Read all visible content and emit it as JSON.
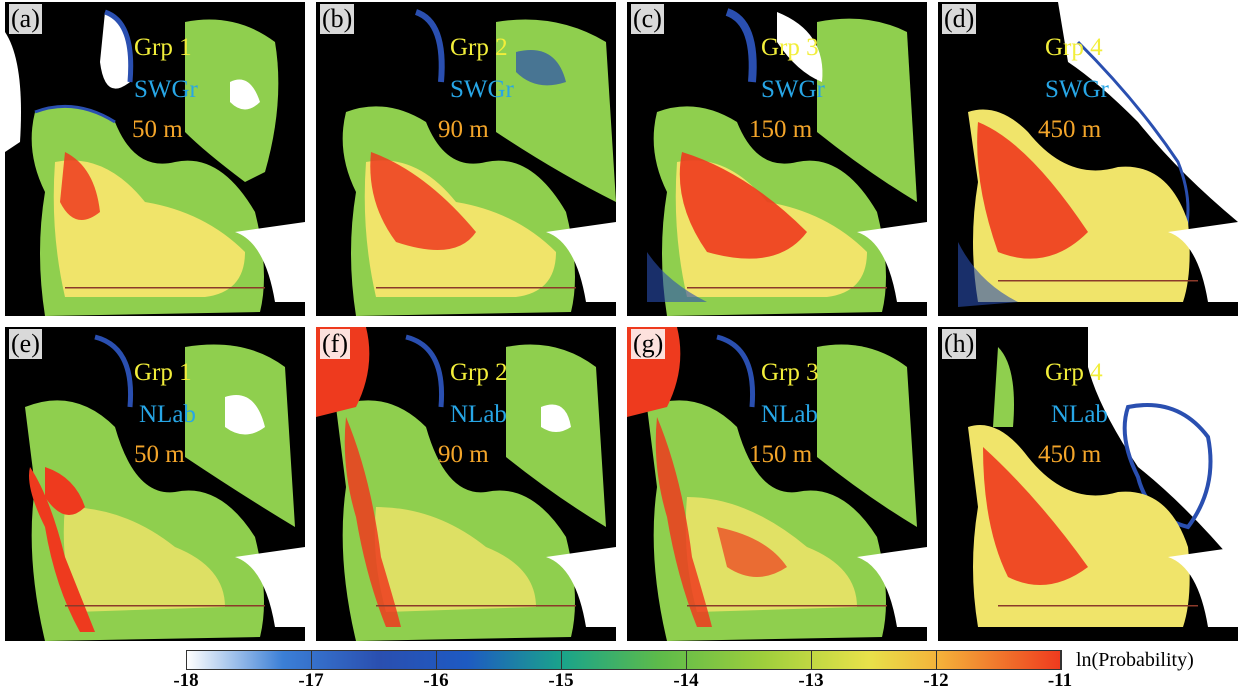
{
  "panels": [
    {
      "label": "(a)",
      "group": "Grp 1",
      "source": "SWGr",
      "depth": "50 m"
    },
    {
      "label": "(b)",
      "group": "Grp 2",
      "source": "SWGr",
      "depth": "90 m"
    },
    {
      "label": "(c)",
      "group": "Grp 3",
      "source": "SWGr",
      "depth": "150 m"
    },
    {
      "label": "(d)",
      "group": "Grp 4",
      "source": "SWGr",
      "depth": "450 m"
    },
    {
      "label": "(e)",
      "group": "Grp 1",
      "source": "NLab",
      "depth": "50 m"
    },
    {
      "label": "(f)",
      "group": "Grp 2",
      "source": "NLab",
      "depth": "90 m"
    },
    {
      "label": "(g)",
      "group": "Grp 3",
      "source": "NLab",
      "depth": "150 m"
    },
    {
      "label": "(h)",
      "group": "Grp 4",
      "source": "NLab",
      "depth": "450 m"
    }
  ],
  "colorbar": {
    "title": "ln(Probability)",
    "ticks": [
      "-18",
      "-17",
      "-16",
      "-15",
      "-14",
      "-13",
      "-12",
      "-11"
    ],
    "min": -18,
    "max": -11,
    "colors": {
      "low": "#ffffff",
      "mid_low": "#2a4fb0",
      "mid": "#5dbb4a",
      "mid_high": "#e8e24a",
      "high": "#ee3a1e"
    }
  },
  "map_colors": {
    "land": "#000000",
    "ocean_low": "#ffffff",
    "ocean_mid": "#8fcf4e",
    "ocean_high": "#f0e46a",
    "hotspot": "#e8321e",
    "contour": "#2a4fb0"
  }
}
